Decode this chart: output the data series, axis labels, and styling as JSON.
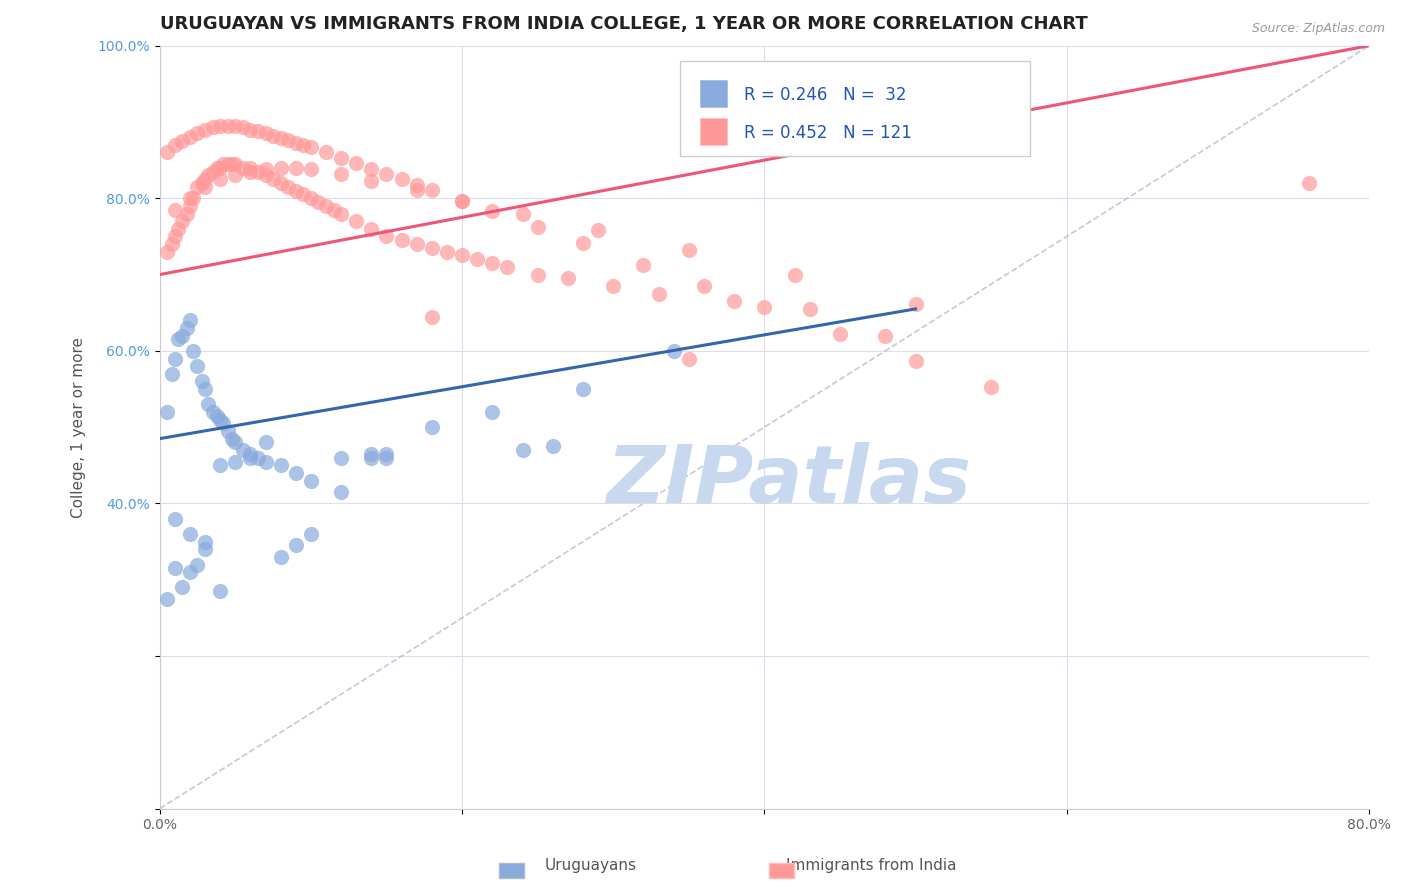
{
  "title": "URUGUAYAN VS IMMIGRANTS FROM INDIA COLLEGE, 1 YEAR OR MORE CORRELATION CHART",
  "source": "Source: ZipAtlas.com",
  "ylabel": "College, 1 year or more",
  "xlim": [
    0.0,
    0.8
  ],
  "ylim": [
    0.0,
    1.0
  ],
  "xticks": [
    0.0,
    0.2,
    0.4,
    0.6,
    0.8
  ],
  "xticklabels": [
    "0.0%",
    "",
    "",
    "",
    "80.0%"
  ],
  "yticks": [
    0.0,
    0.2,
    0.4,
    0.6,
    0.8,
    1.0
  ],
  "yticklabels": [
    "",
    "",
    "40.0%",
    "60.0%",
    "80.0%",
    "100.0%"
  ],
  "legend_blue_r": "R = 0.246",
  "legend_blue_n": "N = 32",
  "legend_pink_r": "R = 0.452",
  "legend_pink_n": "N = 121",
  "legend_label1": "Uruguayans",
  "legend_label2": "Immigrants from India",
  "blue_color": "#88AADD",
  "pink_color": "#FF9999",
  "blue_line_color": "#3366AA",
  "pink_line_color": "#EE5577",
  "dashed_line_color": "#BBBBCC",
  "watermark_text": "ZIPatlas",
  "watermark_color": "#C8D8EE",
  "title_fontsize": 13,
  "axis_label_fontsize": 11,
  "tick_fontsize": 10,
  "blue_scatter_x": [
    0.005,
    0.008,
    0.01,
    0.012,
    0.015,
    0.018,
    0.02,
    0.022,
    0.025,
    0.028,
    0.03,
    0.032,
    0.035,
    0.038,
    0.04,
    0.042,
    0.045,
    0.048,
    0.05,
    0.055,
    0.06,
    0.065,
    0.07,
    0.08,
    0.09,
    0.1,
    0.12,
    0.15,
    0.18,
    0.22,
    0.28,
    0.34
  ],
  "blue_scatter_y": [
    0.52,
    0.57,
    0.59,
    0.615,
    0.62,
    0.63,
    0.64,
    0.6,
    0.58,
    0.56,
    0.55,
    0.53,
    0.52,
    0.515,
    0.51,
    0.505,
    0.495,
    0.485,
    0.48,
    0.47,
    0.465,
    0.46,
    0.455,
    0.45,
    0.44,
    0.43,
    0.415,
    0.46,
    0.5,
    0.52,
    0.55,
    0.6
  ],
  "blue_outliers_x": [
    0.01,
    0.02,
    0.03,
    0.04,
    0.05,
    0.06,
    0.07,
    0.12,
    0.14,
    0.14,
    0.15,
    0.24,
    0.26,
    0.04,
    0.08,
    0.09,
    0.1
  ],
  "blue_outliers_y": [
    0.38,
    0.36,
    0.35,
    0.45,
    0.455,
    0.46,
    0.48,
    0.46,
    0.465,
    0.46,
    0.465,
    0.47,
    0.475,
    0.285,
    0.33,
    0.345,
    0.36
  ],
  "blue_low_x": [
    0.005,
    0.01,
    0.015,
    0.02,
    0.025,
    0.03
  ],
  "blue_low_y": [
    0.275,
    0.315,
    0.29,
    0.31,
    0.32,
    0.34
  ],
  "pink_scatter_x": [
    0.005,
    0.008,
    0.01,
    0.012,
    0.015,
    0.018,
    0.02,
    0.022,
    0.025,
    0.028,
    0.03,
    0.032,
    0.035,
    0.038,
    0.04,
    0.042,
    0.045,
    0.048,
    0.05,
    0.055,
    0.06,
    0.065,
    0.07,
    0.075,
    0.08,
    0.085,
    0.09,
    0.095,
    0.1,
    0.105,
    0.11,
    0.115,
    0.12,
    0.13,
    0.14,
    0.15,
    0.16,
    0.17,
    0.18,
    0.19,
    0.2,
    0.21,
    0.22,
    0.23,
    0.25,
    0.27,
    0.3,
    0.33,
    0.38,
    0.43,
    0.005,
    0.01,
    0.015,
    0.02,
    0.025,
    0.03,
    0.035,
    0.04,
    0.045,
    0.05,
    0.055,
    0.06,
    0.065,
    0.07,
    0.075,
    0.08,
    0.085,
    0.09,
    0.095,
    0.1,
    0.11,
    0.12,
    0.13,
    0.14,
    0.15,
    0.16,
    0.17,
    0.18,
    0.2,
    0.22,
    0.25,
    0.28,
    0.32,
    0.36,
    0.4,
    0.45,
    0.5,
    0.55,
    0.01,
    0.02,
    0.03,
    0.04,
    0.05,
    0.06,
    0.07,
    0.08,
    0.09,
    0.1,
    0.12,
    0.14,
    0.17,
    0.2,
    0.24,
    0.29,
    0.35,
    0.42,
    0.5,
    0.18,
    0.35,
    0.48,
    0.76
  ],
  "pink_scatter_y": [
    0.73,
    0.74,
    0.75,
    0.76,
    0.77,
    0.78,
    0.79,
    0.8,
    0.815,
    0.82,
    0.825,
    0.83,
    0.835,
    0.84,
    0.84,
    0.845,
    0.845,
    0.845,
    0.845,
    0.84,
    0.84,
    0.835,
    0.83,
    0.825,
    0.82,
    0.815,
    0.81,
    0.805,
    0.8,
    0.795,
    0.79,
    0.785,
    0.78,
    0.77,
    0.76,
    0.75,
    0.745,
    0.74,
    0.735,
    0.73,
    0.725,
    0.72,
    0.715,
    0.71,
    0.7,
    0.695,
    0.685,
    0.675,
    0.665,
    0.655,
    0.86,
    0.87,
    0.875,
    0.88,
    0.885,
    0.89,
    0.893,
    0.895,
    0.895,
    0.895,
    0.893,
    0.89,
    0.888,
    0.885,
    0.882,
    0.879,
    0.876,
    0.873,
    0.87,
    0.867,
    0.86,
    0.853,
    0.846,
    0.839,
    0.832,
    0.825,
    0.818,
    0.811,
    0.797,
    0.783,
    0.762,
    0.741,
    0.713,
    0.685,
    0.657,
    0.622,
    0.587,
    0.552,
    0.785,
    0.8,
    0.815,
    0.825,
    0.83,
    0.835,
    0.838,
    0.84,
    0.84,
    0.838,
    0.832,
    0.823,
    0.811,
    0.797,
    0.78,
    0.758,
    0.732,
    0.7,
    0.662,
    0.645,
    0.59,
    0.62,
    0.82
  ],
  "blue_line_x": [
    0.0,
    0.5
  ],
  "blue_line_y": [
    0.485,
    0.655
  ],
  "pink_line_x": [
    0.0,
    0.8
  ],
  "pink_line_y": [
    0.7,
    1.0
  ]
}
